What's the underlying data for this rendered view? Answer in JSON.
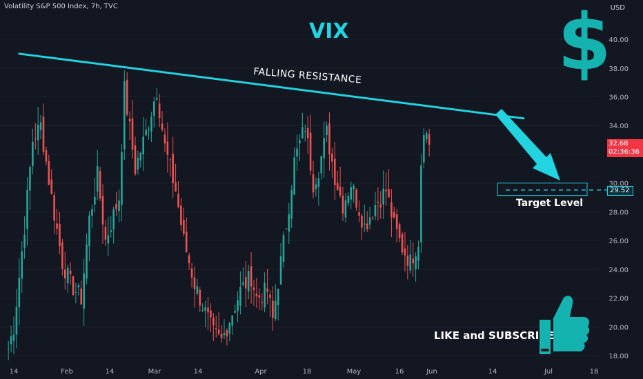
{
  "header": {
    "symbol": "Volatility S&P 500 Index, 7h, TVC",
    "currency": "USD"
  },
  "annotations": {
    "title": "VIX",
    "dollar_symbol": "$",
    "resistance_label": "FALLING RESISTANCE",
    "target_label": "Target Level",
    "cta": "LIKE and SUBSCRIBE",
    "thumb_icon": "thumbs-up-icon"
  },
  "price_label": {
    "price": "32.68",
    "countdown": "02:36:36"
  },
  "target_price": "29.52",
  "colors": {
    "up": "#26a69a",
    "down": "#ef5350",
    "accent": "#22d3e0",
    "price_tag": "#f23645",
    "background": "#131722"
  },
  "chart_data": {
    "type": "candlestick",
    "title": "VIX",
    "y_axis": {
      "label": "USD",
      "ticks": [
        "18.00",
        "20.00",
        "22.00",
        "24.00",
        "26.00",
        "28.00",
        "30.00",
        "32.00",
        "34.00",
        "36.00",
        "38.00",
        "40.00"
      ],
      "ylim": [
        17.5,
        41.5
      ]
    },
    "x_axis": {
      "ticks": [
        "14",
        "Feb",
        "14",
        "Mar",
        "14",
        "Apr",
        "18",
        "May",
        "16",
        "Jun",
        "14",
        "Jul",
        "18"
      ]
    },
    "anchors": [
      {
        "t": "Jan 12",
        "c": 18.5
      },
      {
        "t": "Jan 14",
        "c": 20.0
      },
      {
        "t": "Jan 18",
        "c": 27.0
      },
      {
        "t": "Jan 21",
        "c": 33.0
      },
      {
        "t": "Jan 24",
        "c": 34.0
      },
      {
        "t": "Jan 28",
        "c": 29.0
      },
      {
        "t": "Feb 1",
        "c": 24.5
      },
      {
        "t": "Feb 4",
        "c": 23.0
      },
      {
        "t": "Feb 8",
        "c": 22.0
      },
      {
        "t": "Feb 11",
        "c": 27.5
      },
      {
        "t": "Feb 14",
        "c": 30.5
      },
      {
        "t": "Feb 17",
        "c": 26.0
      },
      {
        "t": "Feb 22",
        "c": 29.0
      },
      {
        "t": "Feb 24",
        "c": 36.5
      },
      {
        "t": "Feb 28",
        "c": 31.0
      },
      {
        "t": "Mar 4",
        "c": 33.5
      },
      {
        "t": "Mar 8",
        "c": 36.5
      },
      {
        "t": "Mar 11",
        "c": 32.5
      },
      {
        "t": "Mar 15",
        "c": 29.5
      },
      {
        "t": "Mar 18",
        "c": 26.0
      },
      {
        "t": "Mar 22",
        "c": 23.0
      },
      {
        "t": "Mar 25",
        "c": 21.5
      },
      {
        "t": "Mar 29",
        "c": 19.5
      },
      {
        "t": "Apr 1",
        "c": 19.0
      },
      {
        "t": "Apr 5",
        "c": 21.0
      },
      {
        "t": "Apr 8",
        "c": 22.5
      },
      {
        "t": "Apr 12",
        "c": 23.5
      },
      {
        "t": "Apr 14",
        "c": 22.0
      },
      {
        "t": "Apr 18",
        "c": 22.5
      },
      {
        "t": "Apr 20",
        "c": 20.5
      },
      {
        "t": "Apr 23",
        "c": 24.5
      },
      {
        "t": "Apr 26",
        "c": 28.5
      },
      {
        "t": "Apr 28",
        "c": 31.5
      },
      {
        "t": "May 2",
        "c": 34.0
      },
      {
        "t": "May 5",
        "c": 30.0
      },
      {
        "t": "May 7",
        "c": 31.0
      },
      {
        "t": "May 10",
        "c": 33.5
      },
      {
        "t": "May 13",
        "c": 30.5
      },
      {
        "t": "May 16",
        "c": 28.5
      },
      {
        "t": "May 19",
        "c": 30.0
      },
      {
        "t": "May 24",
        "c": 27.0
      },
      {
        "t": "May 28",
        "c": 28.5
      },
      {
        "t": "Jun 1",
        "c": 29.5
      },
      {
        "t": "Jun 4",
        "c": 27.0
      },
      {
        "t": "Jun 7",
        "c": 25.5
      },
      {
        "t": "Jun 10",
        "c": 24.5
      },
      {
        "t": "Jun 13",
        "c": 26.0
      },
      {
        "t": "Jun 14",
        "c": 31.5
      },
      {
        "t": "Jun 15",
        "c": 34.0
      },
      {
        "t": "Jun 17",
        "c": 32.68
      }
    ],
    "overlays": {
      "falling_resistance": {
        "from": {
          "t": "Jan 16",
          "price": 39.0
        },
        "to": {
          "t": "Jul 22",
          "price": 34.5
        }
      },
      "target_level": 29.52
    }
  }
}
